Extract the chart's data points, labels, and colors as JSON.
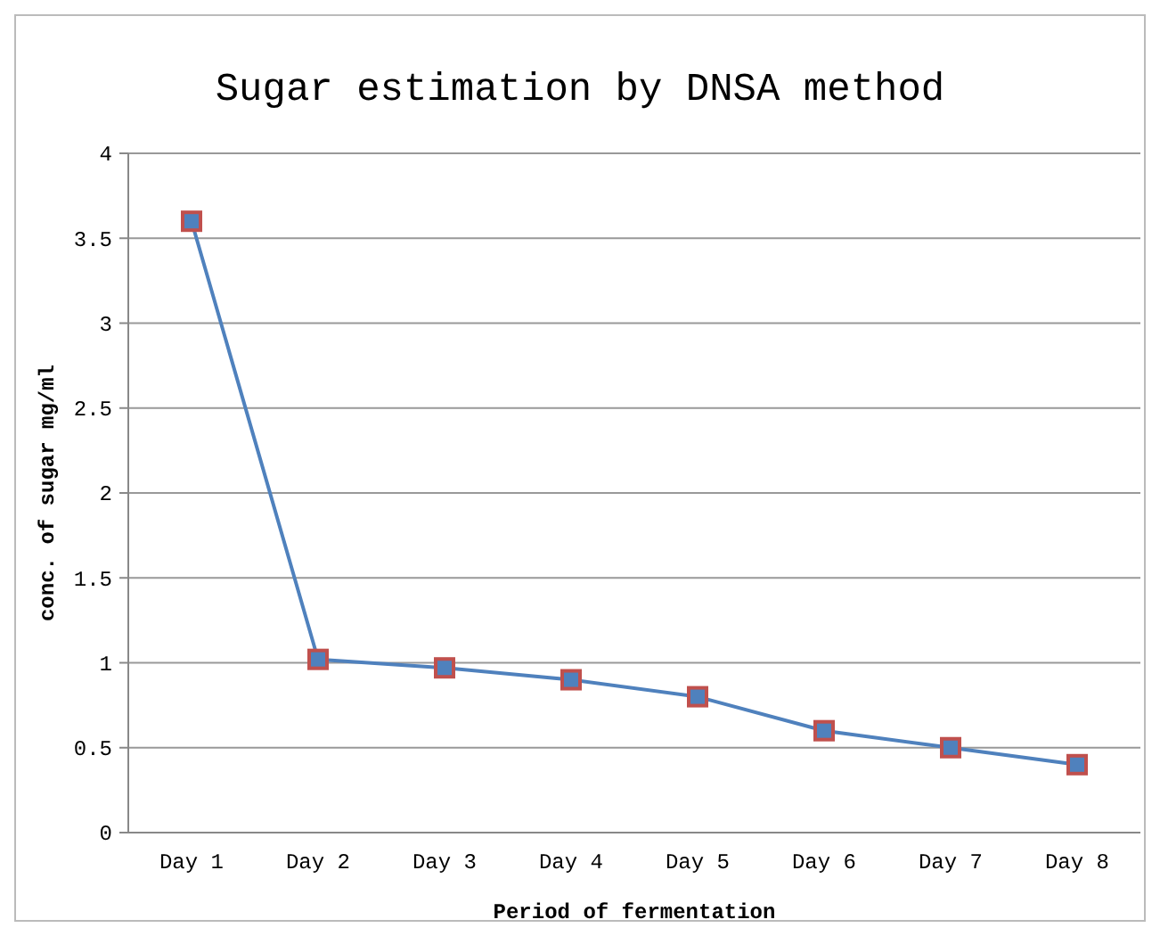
{
  "chart_data": {
    "type": "line",
    "title": "Sugar estimation by DNSA method",
    "xlabel": "Period of fermentation",
    "ylabel": "conc. of sugar mg/ml",
    "categories": [
      "Day 1",
      "Day 2",
      "Day 3",
      "Day 4",
      "Day 5",
      "Day 6",
      "Day 7",
      "Day 8"
    ],
    "series": [
      {
        "color": "#4f81bd",
        "values": [
          3.6,
          1.02,
          0.97,
          0.9,
          0.8,
          0.6,
          0.5,
          0.4
        ]
      }
    ],
    "ylim": [
      0,
      4
    ],
    "yticks": [
      0,
      0.5,
      1,
      1.5,
      2,
      2.5,
      3,
      3.5,
      4
    ],
    "grid": "y",
    "marker": "square",
    "line_style": "solid"
  }
}
